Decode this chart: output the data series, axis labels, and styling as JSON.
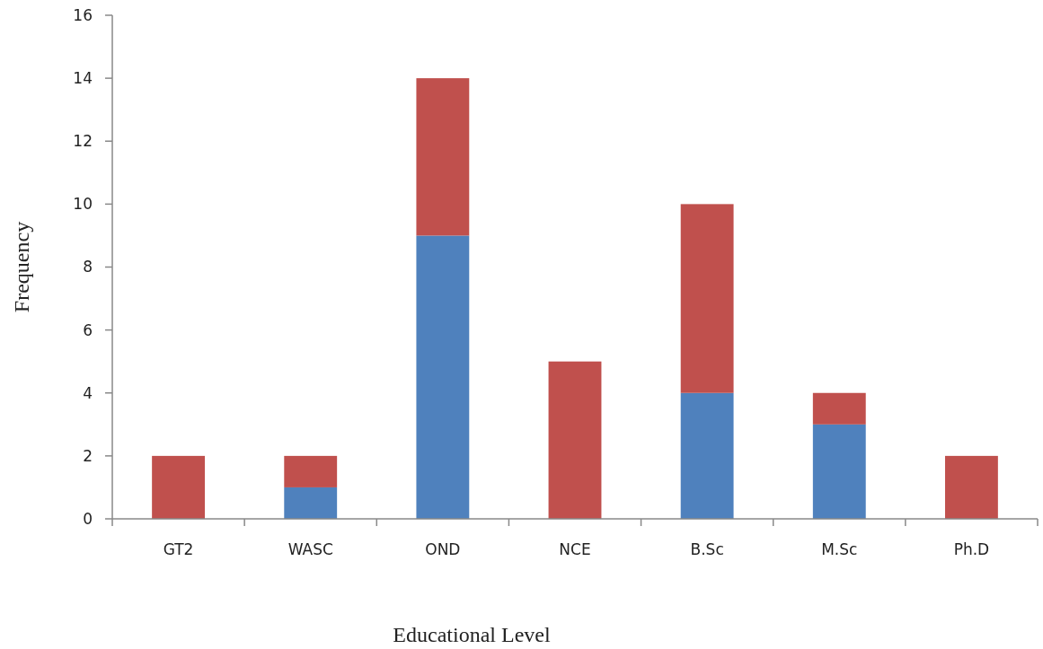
{
  "chart_data": {
    "type": "bar",
    "stacked": true,
    "xlabel": "Educational Level",
    "ylabel": "Frequency",
    "categories": [
      "GT2",
      "WASC",
      "OND",
      "NCE",
      "B.Sc",
      "M.Sc",
      "Ph.D"
    ],
    "series": [
      {
        "color": "#4f81bd",
        "values": [
          0,
          1,
          9,
          0,
          4,
          3,
          0
        ]
      },
      {
        "color": "#c0504d",
        "values": [
          2,
          1,
          5,
          5,
          6,
          1,
          2
        ]
      }
    ],
    "ylim": [
      0,
      16
    ],
    "yticks": [
      0,
      2,
      4,
      6,
      8,
      10,
      12,
      14,
      16
    ],
    "grid": false
  }
}
